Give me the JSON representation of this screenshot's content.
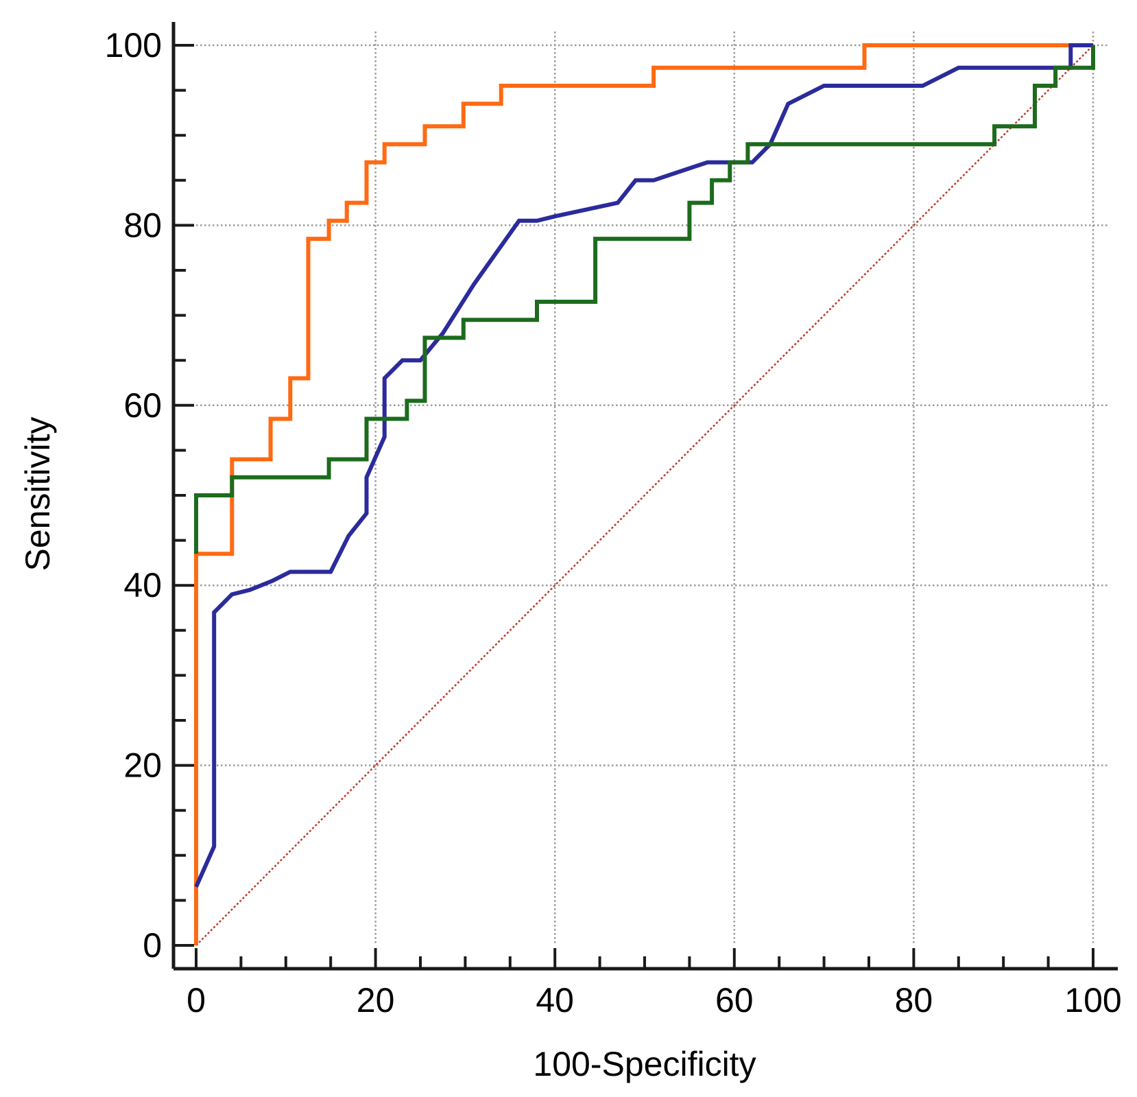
{
  "chart_data": {
    "type": "line",
    "title": "",
    "xlabel": "100-Specificity",
    "ylabel": "Sensitivity",
    "xlim": [
      0,
      100
    ],
    "ylim": [
      0,
      100
    ],
    "grid": true,
    "x_ticks": [
      0,
      20,
      40,
      60,
      80,
      100
    ],
    "y_ticks": [
      0,
      20,
      40,
      60,
      80,
      100
    ],
    "minor_ticks_per_major": 4,
    "reference_line": {
      "name": "reference-diagonal",
      "color": "#c0392b",
      "points": [
        [
          0,
          0
        ],
        [
          100,
          100
        ]
      ]
    },
    "series": [
      {
        "name": "orange-roc-curve",
        "color": "#ff6a13",
        "points": [
          [
            0,
            0
          ],
          [
            0,
            43.5
          ],
          [
            4,
            43.5
          ],
          [
            4,
            54
          ],
          [
            8.3,
            54
          ],
          [
            8.3,
            58.5
          ],
          [
            10.5,
            58.5
          ],
          [
            10.5,
            63
          ],
          [
            12.5,
            63
          ],
          [
            12.5,
            78.5
          ],
          [
            14.8,
            78.5
          ],
          [
            14.8,
            80.5
          ],
          [
            16.8,
            80.5
          ],
          [
            16.8,
            82.5
          ],
          [
            19,
            82.5
          ],
          [
            19,
            87
          ],
          [
            21,
            87
          ],
          [
            21,
            89
          ],
          [
            25.5,
            89
          ],
          [
            25.5,
            91
          ],
          [
            29.8,
            91
          ],
          [
            29.8,
            93.5
          ],
          [
            34,
            93.5
          ],
          [
            34,
            95.5
          ],
          [
            51,
            95.5
          ],
          [
            51,
            97.5
          ],
          [
            74.5,
            97.5
          ],
          [
            74.5,
            100
          ],
          [
            100,
            100
          ]
        ]
      },
      {
        "name": "blue-roc-curve",
        "color": "#2b2b9c",
        "points": [
          [
            0,
            6.5
          ],
          [
            2,
            11
          ],
          [
            2,
            37
          ],
          [
            4,
            39
          ],
          [
            6,
            39.5
          ],
          [
            8.5,
            40.5
          ],
          [
            10.5,
            41.5
          ],
          [
            15,
            41.5
          ],
          [
            17,
            45.5
          ],
          [
            19,
            48
          ],
          [
            19,
            52
          ],
          [
            21,
            56.5
          ],
          [
            21,
            63
          ],
          [
            23,
            65
          ],
          [
            25,
            65
          ],
          [
            27.5,
            68
          ],
          [
            31,
            73.5
          ],
          [
            36,
            80.5
          ],
          [
            38,
            80.5
          ],
          [
            40,
            81
          ],
          [
            47,
            82.5
          ],
          [
            49,
            85
          ],
          [
            51,
            85
          ],
          [
            57,
            87
          ],
          [
            62,
            87
          ],
          [
            64,
            89
          ],
          [
            66,
            93.5
          ],
          [
            70,
            95.5
          ],
          [
            81,
            95.5
          ],
          [
            85,
            97.5
          ],
          [
            97.5,
            97.5
          ],
          [
            97.5,
            100
          ],
          [
            100,
            100
          ]
        ]
      },
      {
        "name": "green-roc-curve",
        "color": "#1d6b1d",
        "points": [
          [
            0,
            43.5
          ],
          [
            0,
            50
          ],
          [
            4,
            50
          ],
          [
            4,
            52
          ],
          [
            14.8,
            52
          ],
          [
            14.8,
            54
          ],
          [
            19,
            54
          ],
          [
            19,
            58.5
          ],
          [
            23.5,
            58.5
          ],
          [
            23.5,
            60.5
          ],
          [
            25.5,
            60.5
          ],
          [
            25.5,
            67.5
          ],
          [
            29.8,
            67.5
          ],
          [
            29.8,
            69.5
          ],
          [
            38,
            69.5
          ],
          [
            38,
            71.5
          ],
          [
            44.5,
            71.5
          ],
          [
            44.5,
            78.5
          ],
          [
            55,
            78.5
          ],
          [
            55,
            82.5
          ],
          [
            57.5,
            82.5
          ],
          [
            57.5,
            85
          ],
          [
            59.5,
            85
          ],
          [
            59.5,
            87
          ],
          [
            61.5,
            87
          ],
          [
            61.5,
            89
          ],
          [
            89,
            89
          ],
          [
            89,
            91
          ],
          [
            93.5,
            91
          ],
          [
            93.5,
            95.5
          ],
          [
            95.8,
            95.5
          ],
          [
            95.8,
            97.5
          ],
          [
            100,
            97.5
          ],
          [
            100,
            100
          ]
        ]
      }
    ]
  }
}
